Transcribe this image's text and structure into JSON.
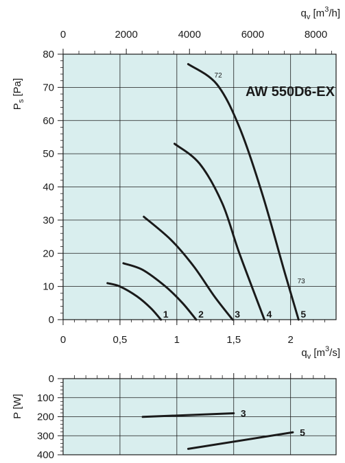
{
  "chart_data": [
    {
      "type": "line",
      "title": "AW  550D6-EX",
      "ylabel": "Ps [Pa]",
      "xlabel": "",
      "x_bottom": {
        "ticks": [
          "0",
          "0,5",
          "1",
          "1,5",
          "2"
        ],
        "tick_values": [
          0,
          0.5,
          1,
          1.5,
          2
        ],
        "lim": [
          0,
          2.4
        ]
      },
      "x_top": {
        "label": "qv [m3/h]",
        "ticks": [
          "0",
          "2000",
          "4000",
          "6000",
          "8000"
        ],
        "tick_values": [
          0,
          2000,
          4000,
          6000,
          8000
        ],
        "lim": [
          0,
          8640
        ]
      },
      "y": {
        "ticks": [
          "0",
          "10",
          "20",
          "30",
          "40",
          "50",
          "60",
          "70",
          "80"
        ],
        "tick_values": [
          0,
          10,
          20,
          30,
          40,
          50,
          60,
          70,
          80
        ],
        "lim": [
          0,
          80
        ]
      },
      "grid": true,
      "background": "#d9eeee",
      "series": [
        {
          "name": "1",
          "points": [
            [
              0.39,
              11
            ],
            [
              0.5,
              10
            ],
            [
              0.65,
              7
            ],
            [
              0.77,
              3.5
            ],
            [
              0.86,
              0
            ]
          ]
        },
        {
          "name": "2",
          "points": [
            [
              0.53,
              17
            ],
            [
              0.7,
              15
            ],
            [
              0.9,
              10
            ],
            [
              1.05,
              5
            ],
            [
              1.17,
              0
            ]
          ]
        },
        {
          "name": "3",
          "points": [
            [
              0.71,
              31
            ],
            [
              0.95,
              24
            ],
            [
              1.15,
              16
            ],
            [
              1.33,
              7
            ],
            [
              1.49,
              0
            ]
          ]
        },
        {
          "name": "4",
          "points": [
            [
              0.98,
              53
            ],
            [
              1.2,
              47
            ],
            [
              1.4,
              35
            ],
            [
              1.55,
              20
            ],
            [
              1.77,
              0
            ]
          ]
        },
        {
          "name": "5",
          "points": [
            [
              1.1,
              77
            ],
            [
              1.35,
              71
            ],
            [
              1.55,
              58
            ],
            [
              1.75,
              38
            ],
            [
              1.95,
              14
            ],
            [
              2.07,
              0
            ]
          ]
        }
      ],
      "annotations": [
        {
          "text": "72",
          "x": 1.33,
          "y": 73
        },
        {
          "text": "73",
          "x": 2.06,
          "y": 11
        }
      ]
    },
    {
      "type": "line",
      "ylabel": "P [W]",
      "x": {
        "label": "qv [m3/s]",
        "lim": [
          0,
          2.4
        ]
      },
      "y": {
        "ticks": [
          "0",
          "100",
          "200",
          "300",
          "400"
        ],
        "tick_values": [
          0,
          100,
          200,
          300,
          400
        ],
        "lim": [
          0,
          400
        ],
        "inverted": true
      },
      "grid": true,
      "background": "#d9eeee",
      "series": [
        {
          "name": "3",
          "points": [
            [
              0.7,
              201
            ],
            [
              1.5,
              182
            ]
          ]
        },
        {
          "name": "5",
          "points": [
            [
              1.1,
              369
            ],
            [
              2.02,
              282
            ]
          ]
        }
      ]
    }
  ]
}
